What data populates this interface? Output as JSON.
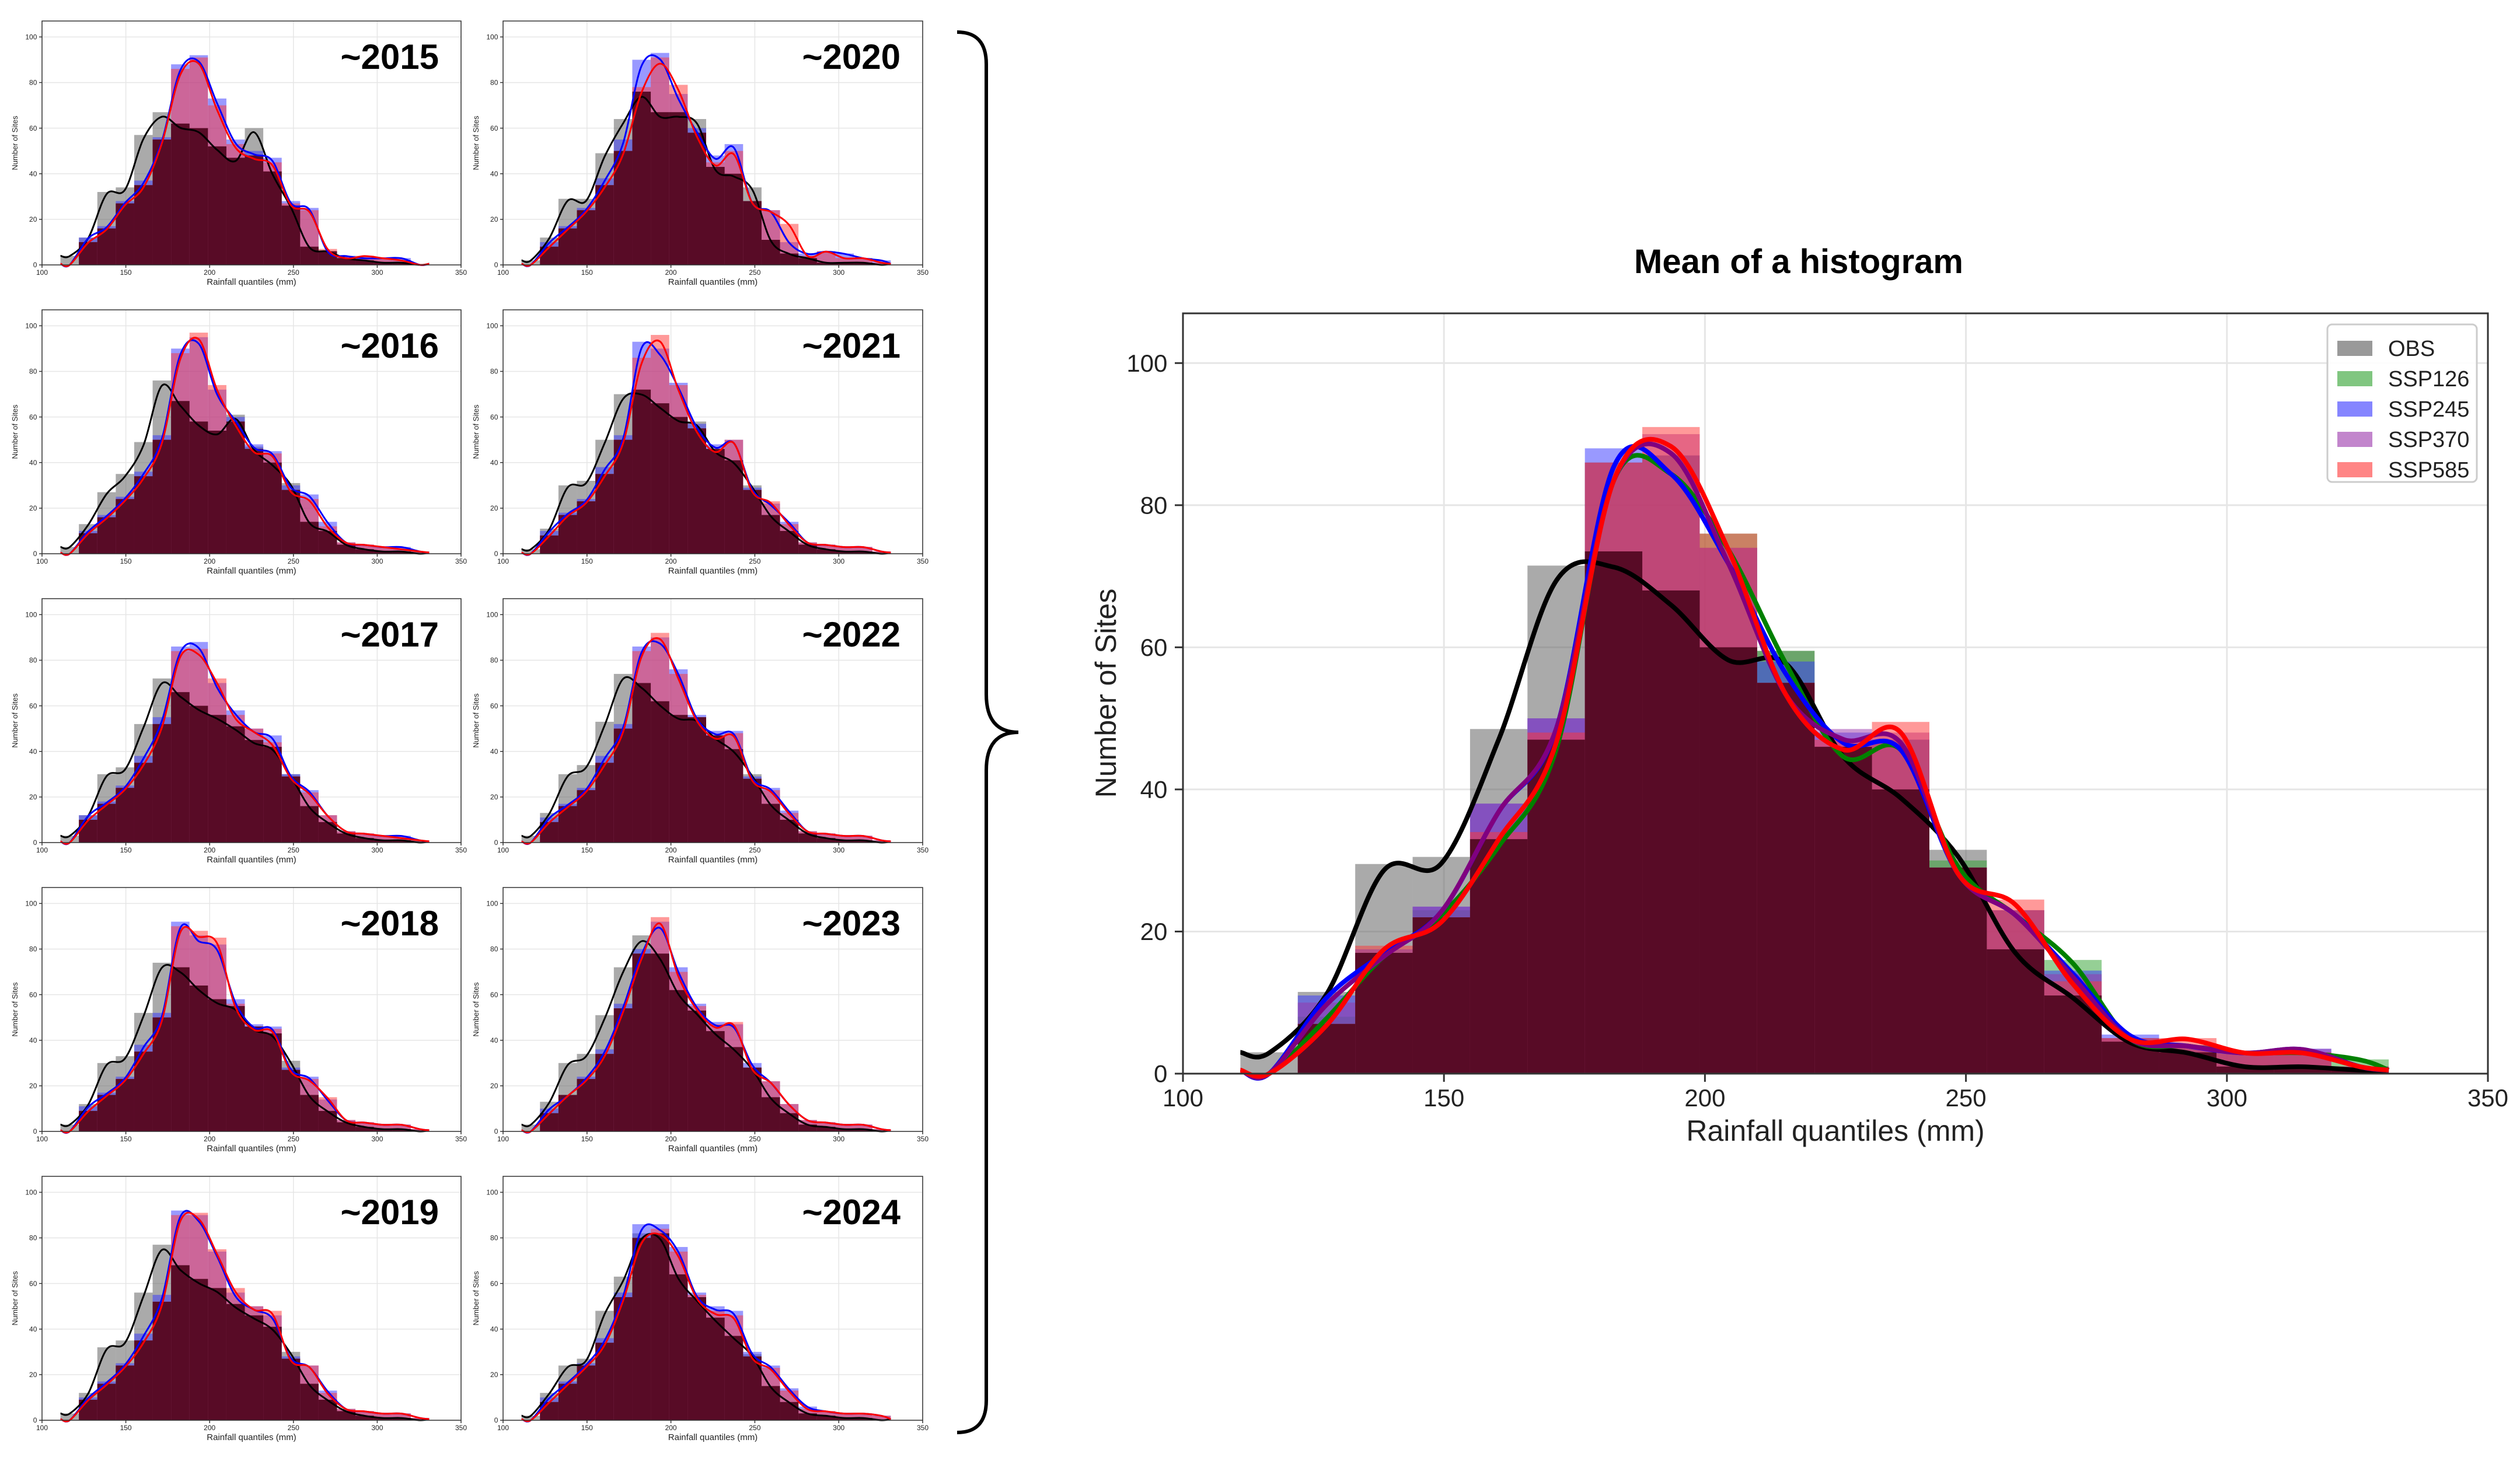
{
  "chart_data": {
    "bin_edges": [
      111,
      122,
      133,
      144,
      155,
      166,
      177,
      188,
      199,
      210,
      221,
      232,
      243,
      254,
      265,
      276,
      287,
      298,
      309,
      320,
      331
    ],
    "main": {
      "type": "bar",
      "title": "Mean of a histogram",
      "xlabel": "Rainfall quantiles (mm)",
      "ylabel": "Number of Sites",
      "xlim": [
        100,
        350
      ],
      "ylim": [
        0,
        107
      ],
      "xticks": [
        "100",
        "150",
        "200",
        "250",
        "300",
        "350"
      ],
      "yticks": [
        "0",
        "20",
        "40",
        "60",
        "80",
        "100"
      ],
      "grid": true,
      "legend_position": "top-right",
      "series": [
        {
          "name": "OBS",
          "color": "#555555",
          "line": "#000000",
          "values": [
            3,
            11.5,
            29.5,
            30.5,
            48.5,
            71.5,
            73.5,
            68,
            60,
            59.5,
            46,
            40,
            31.5,
            17.5,
            11,
            4.5,
            3,
            1,
            1,
            0.5
          ]
        },
        {
          "name": "SSP126",
          "color": "#2ca02c",
          "line": "#008000",
          "values": [
            0,
            8,
            17,
            23,
            33,
            47,
            86,
            87,
            76,
            59.5,
            46,
            47,
            30,
            23,
            16,
            5,
            4,
            3,
            3,
            2
          ]
        },
        {
          "name": "SSP245",
          "color": "#3333ff",
          "line": "#0000ff",
          "values": [
            0,
            11,
            17.5,
            23.5,
            38,
            50,
            88,
            87,
            74,
            58,
            48,
            47,
            29,
            23,
            14.5,
            5.5,
            4,
            3,
            3.5,
            1
          ]
        },
        {
          "name": "SSP370",
          "color": "#9933aa",
          "line": "#800080",
          "values": [
            0,
            10,
            17,
            23.5,
            38,
            50,
            86,
            90,
            74,
            55,
            48.5,
            48,
            29,
            23,
            14,
            5,
            4,
            3,
            3.5,
            1
          ]
        },
        {
          "name": "SSP585",
          "color": "#ff3333",
          "line": "#ff0000",
          "values": [
            0,
            7,
            18,
            22,
            34,
            48,
            86,
            91,
            76,
            55,
            47,
            49.5,
            29,
            24.5,
            13,
            5,
            5,
            3,
            3,
            1
          ]
        }
      ]
    },
    "panels": {
      "xlabel": "Rainfall quantiles (mm)",
      "ylabel": "Number of Sites",
      "xticks": [
        "100",
        "150",
        "200",
        "250",
        "300",
        "350"
      ],
      "yticks": [
        "0",
        "20",
        "40",
        "60",
        "80",
        "100"
      ],
      "items": [
        {
          "label": "~2015",
          "obs": [
            4,
            12,
            32,
            34,
            57,
            67,
            62,
            60,
            52,
            47,
            60,
            41,
            26,
            8,
            6,
            3,
            2,
            1,
            1,
            0
          ],
          "ssp245": [
            0,
            12,
            17,
            28,
            37,
            56,
            88,
            92,
            73,
            55,
            50,
            47,
            28,
            25,
            6,
            4,
            3,
            3,
            3,
            0
          ],
          "ssp585": [
            0,
            10,
            16,
            27,
            35,
            55,
            86,
            91,
            70,
            53,
            48,
            45,
            27,
            24,
            7,
            3,
            4,
            3,
            2,
            0
          ]
        },
        {
          "label": "~2020",
          "obs": [
            2,
            12,
            29,
            29,
            49,
            64,
            76,
            67,
            67,
            64,
            43,
            40,
            34,
            11,
            5,
            3,
            1,
            1,
            1,
            0
          ],
          "ssp245": [
            0,
            10,
            17,
            25,
            38,
            55,
            90,
            93,
            75,
            60,
            48,
            53,
            28,
            24,
            10,
            5,
            6,
            5,
            3,
            2
          ],
          "ssp585": [
            0,
            8,
            16,
            24,
            35,
            50,
            78,
            91,
            79,
            58,
            45,
            50,
            28,
            24,
            18,
            4,
            6,
            3,
            3,
            1
          ]
        },
        {
          "label": "~2016",
          "obs": [
            3,
            13,
            27,
            35,
            49,
            76,
            67,
            58,
            54,
            61,
            47,
            40,
            31,
            14,
            10,
            4,
            2,
            1,
            1,
            0
          ],
          "ssp245": [
            0,
            10,
            17,
            25,
            36,
            52,
            90,
            95,
            72,
            60,
            48,
            45,
            30,
            26,
            14,
            5,
            4,
            3,
            3,
            1
          ],
          "ssp585": [
            0,
            9,
            16,
            24,
            34,
            50,
            88,
            97,
            74,
            58,
            46,
            44,
            28,
            24,
            12,
            5,
            4,
            3,
            2,
            1
          ]
        },
        {
          "label": "~2021",
          "obs": [
            2,
            11,
            30,
            32,
            50,
            70,
            72,
            66,
            60,
            58,
            46,
            41,
            30,
            17,
            10,
            4,
            2,
            1,
            1,
            0
          ],
          "ssp245": [
            0,
            10,
            18,
            24,
            38,
            52,
            93,
            90,
            75,
            57,
            48,
            50,
            29,
            22,
            14,
            5,
            4,
            3,
            3,
            1
          ],
          "ssp585": [
            0,
            8,
            17,
            23,
            35,
            50,
            86,
            96,
            74,
            55,
            46,
            50,
            28,
            23,
            13,
            5,
            4,
            3,
            3,
            1
          ]
        },
        {
          "label": "~2017",
          "obs": [
            3,
            12,
            30,
            33,
            52,
            72,
            66,
            60,
            56,
            51,
            45,
            42,
            30,
            16,
            9,
            4,
            2,
            1,
            1,
            0
          ],
          "ssp245": [
            0,
            12,
            18,
            25,
            38,
            55,
            86,
            88,
            70,
            58,
            50,
            47,
            30,
            23,
            12,
            5,
            4,
            3,
            3,
            1
          ],
          "ssp585": [
            0,
            10,
            17,
            24,
            35,
            52,
            84,
            85,
            72,
            56,
            50,
            44,
            29,
            22,
            12,
            5,
            4,
            3,
            2,
            1
          ]
        },
        {
          "label": "~2022",
          "obs": [
            3,
            13,
            30,
            34,
            53,
            74,
            70,
            62,
            56,
            55,
            47,
            41,
            30,
            17,
            10,
            4,
            2,
            1,
            1,
            0
          ],
          "ssp245": [
            0,
            11,
            17,
            24,
            38,
            52,
            86,
            90,
            76,
            56,
            49,
            49,
            29,
            24,
            14,
            5,
            4,
            3,
            3,
            1
          ],
          "ssp585": [
            0,
            9,
            16,
            23,
            35,
            50,
            84,
            92,
            74,
            55,
            47,
            48,
            28,
            23,
            13,
            5,
            4,
            3,
            3,
            1
          ]
        },
        {
          "label": "~2018",
          "obs": [
            3,
            12,
            30,
            33,
            52,
            74,
            72,
            64,
            58,
            55,
            46,
            43,
            31,
            16,
            9,
            4,
            2,
            1,
            1,
            0
          ],
          "ssp245": [
            0,
            11,
            17,
            24,
            38,
            52,
            92,
            86,
            82,
            58,
            47,
            46,
            28,
            24,
            14,
            5,
            4,
            3,
            3,
            1
          ],
          "ssp585": [
            0,
            9,
            16,
            23,
            35,
            50,
            90,
            88,
            85,
            56,
            46,
            45,
            27,
            23,
            15,
            5,
            4,
            3,
            3,
            1
          ]
        },
        {
          "label": "~2023",
          "obs": [
            3,
            13,
            30,
            34,
            51,
            72,
            86,
            78,
            62,
            53,
            44,
            37,
            28,
            15,
            8,
            3,
            2,
            1,
            1,
            0
          ],
          "ssp245": [
            0,
            10,
            16,
            24,
            36,
            56,
            80,
            92,
            72,
            56,
            48,
            47,
            30,
            22,
            12,
            5,
            4,
            3,
            3,
            1
          ],
          "ssp585": [
            0,
            8,
            16,
            23,
            34,
            54,
            78,
            94,
            70,
            55,
            47,
            48,
            28,
            22,
            12,
            5,
            4,
            3,
            3,
            1
          ]
        },
        {
          "label": "~2019",
          "obs": [
            3,
            12,
            32,
            35,
            56,
            77,
            68,
            62,
            58,
            51,
            46,
            41,
            30,
            16,
            9,
            4,
            2,
            1,
            1,
            0
          ],
          "ssp245": [
            0,
            10,
            17,
            25,
            38,
            55,
            92,
            90,
            74,
            56,
            50,
            46,
            28,
            24,
            13,
            5,
            4,
            3,
            3,
            1
          ],
          "ssp585": [
            0,
            9,
            16,
            24,
            35,
            52,
            90,
            91,
            75,
            58,
            50,
            48,
            27,
            24,
            12,
            5,
            4,
            3,
            3,
            1
          ]
        },
        {
          "label": "~2024",
          "obs": [
            2,
            12,
            24,
            27,
            48,
            63,
            82,
            82,
            64,
            54,
            45,
            37,
            29,
            15,
            8,
            3,
            2,
            1,
            1,
            0
          ],
          "ssp245": [
            0,
            10,
            17,
            25,
            36,
            56,
            86,
            86,
            76,
            56,
            50,
            48,
            30,
            24,
            14,
            6,
            4,
            3,
            3,
            2
          ],
          "ssp585": [
            0,
            8,
            16,
            24,
            34,
            54,
            80,
            84,
            74,
            55,
            48,
            46,
            28,
            23,
            13,
            5,
            4,
            3,
            3,
            2
          ]
        }
      ]
    }
  }
}
